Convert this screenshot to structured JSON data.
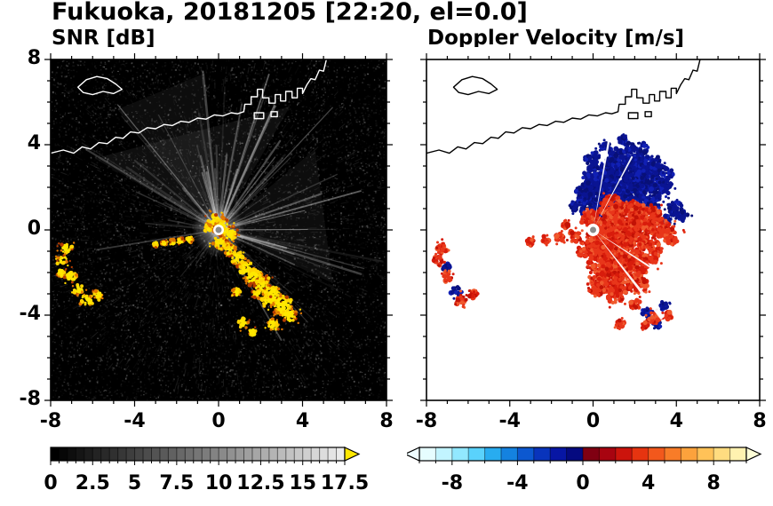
{
  "title": "Fukuoka, 20181205 [22:20, el=0.0]",
  "panels": {
    "snr": {
      "title": "SNR [dB]",
      "xticks": [
        -8,
        -4,
        0,
        4,
        8
      ],
      "yticks": [
        -8,
        -4,
        0,
        4,
        8
      ],
      "xlim": [
        -8,
        8
      ],
      "ylim": [
        -8,
        8
      ]
    },
    "doppler": {
      "title": "Doppler Velocity [m/s]",
      "xticks": [
        -8,
        -4,
        0,
        4,
        8
      ],
      "xlim": [
        -8,
        8
      ],
      "ylim": [
        -8,
        8
      ]
    }
  },
  "colorbars": {
    "snr": {
      "range": [
        0,
        17.5
      ],
      "ticks": [
        0,
        2.5,
        5,
        7.5,
        10,
        12.5,
        15,
        17.5
      ],
      "minor_step": 0.5,
      "n_cells": 35,
      "scale": "grayscale",
      "start_color": "#000000",
      "end_color": "#ebebeb",
      "over_color": "#ffe800"
    },
    "doppler": {
      "range": [
        -10,
        10
      ],
      "ticks": [
        -8,
        -4,
        0,
        4,
        8
      ],
      "minor_step": 1,
      "cell_colors": [
        "#e6fdff",
        "#c2f4ff",
        "#92e8ff",
        "#5ad2fc",
        "#28acf0",
        "#1482e0",
        "#0c58d0",
        "#0934bc",
        "#0716a4",
        "#050a80",
        "#800012",
        "#a80410",
        "#cc140c",
        "#e63410",
        "#f2581c",
        "#f87c28",
        "#fca23c",
        "#ffc258",
        "#ffdc80",
        "#fff2b0"
      ],
      "under_color": "#eefcff",
      "over_color": "#ffffd8"
    }
  },
  "chart_data": {
    "type": "heatmap",
    "subtype": "dual_radar_ppi",
    "site": "Fukuoka",
    "date": "20181205",
    "time": "22:20",
    "elevation_deg": 0.0,
    "x_range": [
      -8,
      8
    ],
    "y_range": [
      -8,
      8
    ],
    "x_ticks": [
      -8,
      -4,
      0,
      4,
      8
    ],
    "y_ticks": [
      -8,
      -4,
      0,
      4,
      8
    ],
    "panels": [
      {
        "title": "SNR [dB]",
        "colorbar_range": [
          0,
          17.5
        ],
        "colorbar_ticks": [
          0,
          2.5,
          5,
          7.5,
          10,
          12.5,
          15,
          17.5
        ],
        "palette": "black-to-white grayscale, yellow above 17.5",
        "description": "Black noise field with white radial beams from radar at origin; high-SNR yellow echoes at origin extending southeast to (3.5,-4.5), a thin echo streak west near y=-0.5, isolated echoes near (-7,-1) to (-5.7,-3); white coastline with harbor structures across the north"
      },
      {
        "title": "Doppler Velocity [m/s]",
        "colorbar_range": [
          -10,
          10
        ],
        "colorbar_ticks": [
          -8,
          -4,
          0,
          4,
          8
        ],
        "palette": "cyan-blue-navy for negative, darkred-red-orange-yellow for positive",
        "description": "White background; navy (toward, negative) velocities north-northeast of radar up to y=4.3; red (away, positive) velocities east through south and thin streaks west; small mixed echoes near (-7,-1) to (-5.7,-3) and (1.3,-4.4) to (3.6,-4); black coastline across the north"
      }
    ],
    "render": {
      "coastline": {
        "mainland": [
          [
            -8,
            3.6
          ],
          [
            -7.4,
            3.75
          ],
          [
            -6.9,
            3.6
          ],
          [
            -6.5,
            3.9
          ],
          [
            -6.1,
            3.8
          ],
          [
            -5.7,
            4.1
          ],
          [
            -5.3,
            4.05
          ],
          [
            -4.9,
            4.35
          ],
          [
            -4.55,
            4.3
          ],
          [
            -4.2,
            4.6
          ],
          [
            -3.8,
            4.55
          ],
          [
            -3.4,
            4.8
          ],
          [
            -3.0,
            4.75
          ],
          [
            -2.6,
            4.95
          ],
          [
            -2.2,
            4.9
          ],
          [
            -1.8,
            5.1
          ],
          [
            -1.4,
            5.05
          ],
          [
            -1.0,
            5.25
          ],
          [
            -0.6,
            5.2
          ],
          [
            -0.2,
            5.4
          ],
          [
            0.2,
            5.35
          ],
          [
            0.6,
            5.5
          ],
          [
            0.9,
            5.45
          ],
          [
            1.2,
            5.55
          ],
          [
            1.25,
            5.9
          ],
          [
            1.55,
            5.9
          ],
          [
            1.55,
            6.25
          ],
          [
            1.85,
            6.25
          ],
          [
            1.85,
            6.6
          ],
          [
            2.1,
            6.6
          ],
          [
            2.1,
            6.2
          ],
          [
            2.4,
            6.2
          ],
          [
            2.4,
            5.95
          ],
          [
            2.7,
            5.95
          ],
          [
            2.7,
            6.35
          ],
          [
            2.95,
            6.35
          ],
          [
            2.95,
            6.05
          ],
          [
            3.2,
            6.05
          ],
          [
            3.2,
            6.5
          ],
          [
            3.5,
            6.5
          ],
          [
            3.5,
            6.2
          ],
          [
            3.75,
            6.2
          ],
          [
            3.75,
            6.65
          ],
          [
            4.0,
            6.65
          ],
          [
            4.0,
            6.4
          ],
          [
            4.2,
            6.8
          ],
          [
            4.4,
            7.1
          ],
          [
            4.6,
            7.05
          ],
          [
            4.8,
            7.5
          ],
          [
            5.0,
            7.45
          ],
          [
            5.15,
            8.05
          ]
        ],
        "island": [
          [
            -6.7,
            6.7
          ],
          [
            -6.3,
            7.05
          ],
          [
            -5.8,
            7.2
          ],
          [
            -5.3,
            7.1
          ],
          [
            -4.9,
            6.85
          ],
          [
            -4.6,
            6.6
          ],
          [
            -5.0,
            6.4
          ],
          [
            -5.5,
            6.5
          ],
          [
            -6.0,
            6.35
          ],
          [
            -6.45,
            6.45
          ]
        ],
        "piers": [
          [
            1.7,
            5.5,
            0.45,
            0.28
          ],
          [
            2.5,
            5.55,
            0.3,
            0.24
          ]
        ]
      },
      "snr": {
        "ray_sectors": [
          {
            "a0": 55,
            "a1": 150,
            "n": 30,
            "len": [
              2.5,
              7.8
            ],
            "alpha": [
              0.06,
              0.4
            ],
            "w": [
              1,
              2.8
            ]
          },
          {
            "a0": 150,
            "a1": 190,
            "n": 7,
            "len": [
              2,
              6
            ],
            "alpha": [
              0.04,
              0.22
            ],
            "w": [
              1,
              2
            ]
          },
          {
            "a0": -18,
            "a1": 55,
            "n": 20,
            "len": [
              2.5,
              8.2
            ],
            "alpha": [
              0.05,
              0.38
            ],
            "w": [
              1,
              2.6
            ]
          },
          {
            "a0": -62,
            "a1": -18,
            "n": 11,
            "len": [
              2,
              7
            ],
            "alpha": [
              0.04,
              0.26
            ],
            "w": [
              1,
              2
            ]
          },
          {
            "a0": 190,
            "a1": 240,
            "n": 5,
            "len": [
              1.5,
              4
            ],
            "alpha": [
              0.03,
              0.12
            ],
            "w": [
              1,
              1.6
            ]
          }
        ],
        "fans": [
          {
            "a0": 60,
            "a1": 150,
            "r": 6.8,
            "alpha": 0.06
          },
          {
            "a0": -25,
            "a1": 40,
            "r": 6.0,
            "alpha": 0.05
          },
          {
            "a0": 95,
            "a1": 130,
            "r": 7.5,
            "alpha": 0.05
          }
        ],
        "dark_wedges": [
          {
            "a": -55,
            "len": 5.5,
            "w": 1.4
          },
          {
            "a": -76,
            "len": 5.0,
            "w": 1.2
          }
        ],
        "echo_blobs": [
          [
            0.15,
            0.15,
            0.45
          ],
          [
            0.5,
            -0.2,
            0.4
          ],
          [
            -0.25,
            0.5,
            0.28
          ],
          [
            -0.5,
            0.1,
            0.18
          ],
          [
            0.1,
            -0.6,
            0.35
          ],
          [
            0.55,
            -0.95,
            0.3
          ],
          [
            0.9,
            -1.35,
            0.35
          ],
          [
            1.3,
            -1.8,
            0.4
          ],
          [
            1.7,
            -2.2,
            0.42
          ],
          [
            2.1,
            -2.6,
            0.4
          ],
          [
            2.55,
            -3.0,
            0.45
          ],
          [
            3.05,
            -3.5,
            0.5
          ],
          [
            3.4,
            -4.0,
            0.35
          ],
          [
            2.3,
            -3.35,
            0.3
          ],
          [
            1.85,
            -3.0,
            0.24
          ],
          [
            0.85,
            -2.9,
            0.2
          ],
          [
            1.15,
            -4.35,
            0.28
          ],
          [
            2.6,
            -4.45,
            0.3
          ],
          [
            1.6,
            -4.8,
            0.18
          ],
          [
            -1.4,
            -0.45,
            0.14
          ],
          [
            -1.8,
            -0.5,
            0.13
          ],
          [
            -2.2,
            -0.55,
            0.12
          ],
          [
            -2.6,
            -0.62,
            0.12
          ],
          [
            -3.0,
            -0.68,
            0.11
          ],
          [
            -7.25,
            -0.85,
            0.3
          ],
          [
            -7.45,
            -1.4,
            0.26
          ],
          [
            -7.5,
            -2.0,
            0.2
          ],
          [
            -7.0,
            -2.2,
            0.3
          ],
          [
            -6.7,
            -2.8,
            0.27
          ],
          [
            -6.3,
            -3.3,
            0.3
          ],
          [
            -5.75,
            -3.05,
            0.22
          ]
        ]
      },
      "doppler": {
        "blue_blobs": [
          [
            0.2,
            1.3,
            0.85
          ],
          [
            0.9,
            1.9,
            1.0
          ],
          [
            1.7,
            2.5,
            0.9
          ],
          [
            0.3,
            2.5,
            0.7
          ],
          [
            1.2,
            3.2,
            0.65
          ],
          [
            2.2,
            3.2,
            0.55
          ],
          [
            2.6,
            2.4,
            0.75
          ],
          [
            3.2,
            2.0,
            0.55
          ],
          [
            2.0,
            1.4,
            0.65
          ],
          [
            -0.4,
            1.8,
            0.45
          ],
          [
            0.0,
            3.3,
            0.4
          ],
          [
            1.8,
            3.9,
            0.3
          ],
          [
            2.4,
            3.8,
            0.28
          ],
          [
            3.0,
            3.1,
            0.35
          ],
          [
            3.6,
            2.6,
            0.3
          ],
          [
            2.9,
            1.2,
            0.4
          ],
          [
            3.9,
            1.0,
            0.38
          ],
          [
            4.3,
            0.65,
            0.28
          ],
          [
            3.55,
            0.45,
            0.26
          ],
          [
            -0.85,
            1.1,
            0.26
          ],
          [
            0.6,
            3.9,
            0.22
          ],
          [
            1.4,
            4.25,
            0.18
          ],
          [
            0.7,
            0.9,
            0.4
          ],
          [
            2.6,
            -3.9,
            0.26
          ],
          [
            3.4,
            -3.55,
            0.2
          ],
          [
            3.1,
            -4.45,
            0.18
          ],
          [
            -6.6,
            -2.9,
            0.26
          ],
          [
            -7.05,
            -1.75,
            0.18
          ]
        ],
        "red_blobs": [
          [
            0.6,
            0.3,
            0.85
          ],
          [
            1.5,
            0.4,
            0.9
          ],
          [
            2.4,
            0.4,
            0.75
          ],
          [
            3.2,
            0.1,
            0.55
          ],
          [
            3.8,
            -0.3,
            0.4
          ],
          [
            1.0,
            -0.6,
            0.85
          ],
          [
            1.9,
            -0.7,
            0.75
          ],
          [
            2.7,
            -1.0,
            0.6
          ],
          [
            0.4,
            -1.4,
            0.75
          ],
          [
            1.3,
            -1.5,
            0.75
          ],
          [
            2.1,
            -1.7,
            0.6
          ],
          [
            0.8,
            -2.3,
            0.65
          ],
          [
            1.6,
            -2.5,
            0.55
          ],
          [
            0.2,
            -2.6,
            0.5
          ],
          [
            1.1,
            -3.1,
            0.42
          ],
          [
            2.3,
            -2.6,
            0.38
          ],
          [
            -0.3,
            -0.9,
            0.45
          ],
          [
            -0.1,
            0.55,
            0.45
          ],
          [
            0.9,
            1.15,
            0.5
          ],
          [
            1.9,
            0.95,
            0.45
          ],
          [
            2.9,
            0.8,
            0.35
          ],
          [
            0.35,
            -0.5,
            0.6
          ],
          [
            -0.9,
            -0.3,
            0.3
          ],
          [
            -1.6,
            -0.38,
            0.22
          ],
          [
            -2.3,
            -0.46,
            0.2
          ],
          [
            -3.0,
            -0.55,
            0.18
          ],
          [
            -1.3,
            0.25,
            0.16
          ],
          [
            -7.25,
            -0.85,
            0.28
          ],
          [
            -7.45,
            -1.45,
            0.22
          ],
          [
            -7.0,
            -2.2,
            0.26
          ],
          [
            -6.35,
            -3.3,
            0.28
          ],
          [
            -5.75,
            -3.0,
            0.2
          ],
          [
            2.0,
            -3.45,
            0.28
          ],
          [
            2.9,
            -4.1,
            0.28
          ],
          [
            1.3,
            -4.4,
            0.22
          ],
          [
            2.5,
            -4.5,
            0.18
          ],
          [
            3.6,
            -4.0,
            0.18
          ]
        ],
        "white_wedges": [
          {
            "a": -52,
            "len": 5.4,
            "w": 2
          },
          {
            "a": -33,
            "len": 5.0,
            "w": 1.6
          },
          {
            "a": 80,
            "len": 4.6,
            "w": 1.4
          },
          {
            "a": 62,
            "len": 4.0,
            "w": 1.2
          }
        ]
      }
    }
  },
  "colors": {
    "snr_echo": "#ffe800",
    "doppler_negative": "#0a1492",
    "doppler_positive": "#e63214",
    "coast_snr": "#ffffff",
    "coast_doppler": "#000000"
  }
}
